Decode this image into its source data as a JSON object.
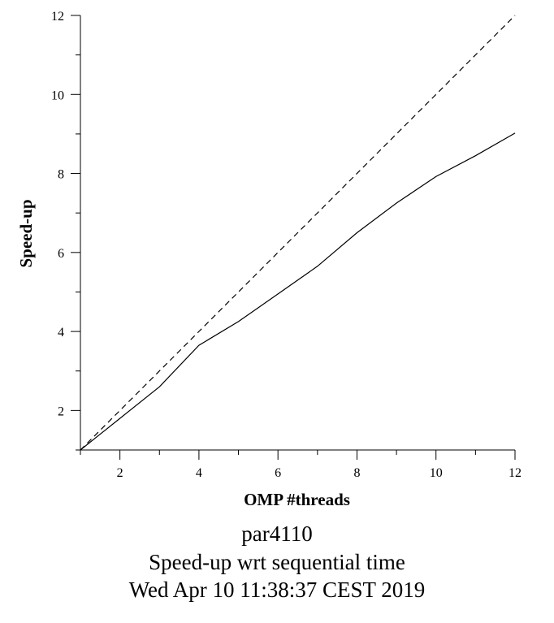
{
  "chart_data": {
    "type": "line",
    "title_lines": [
      "par4110",
      "Speed-up wrt sequential time",
      "Wed Apr 10 11:38:37 CEST 2019"
    ],
    "xlabel": "OMP #threads",
    "ylabel": "Speed-up",
    "xlim": [
      1,
      12
    ],
    "ylim": [
      1,
      12
    ],
    "xticks": [
      2,
      4,
      6,
      8,
      10,
      12
    ],
    "yticks": [
      2,
      4,
      6,
      8,
      10,
      12
    ],
    "grid": false,
    "series": [
      {
        "style": "solid",
        "x": [
          1,
          2,
          3,
          4,
          5,
          6,
          7,
          8,
          9,
          10,
          11,
          12
        ],
        "y": [
          1.0,
          1.8,
          2.6,
          3.65,
          4.25,
          4.95,
          5.65,
          6.5,
          7.25,
          7.92,
          8.45,
          9.02
        ]
      },
      {
        "style": "dashed",
        "x": [
          1,
          12
        ],
        "y": [
          1,
          12
        ]
      }
    ]
  }
}
